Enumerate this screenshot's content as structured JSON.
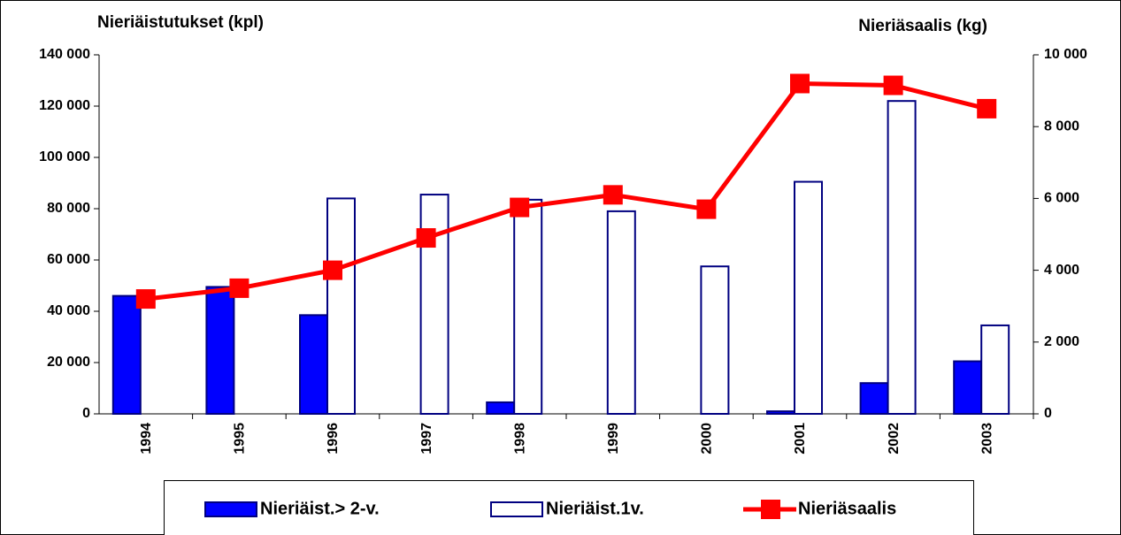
{
  "chart_data": {
    "type": "bar",
    "ylabel": "Nieriäistutukset (kpl)",
    "y2label": "Nieriäsaalis (kg)",
    "categories": [
      "1994",
      "1995",
      "1996",
      "1997",
      "1998",
      "1999",
      "2000",
      "2001",
      "2002",
      "2003"
    ],
    "series": [
      {
        "name": "Nieriäist.> 2-v.",
        "type": "bar",
        "color": "#0000ff",
        "values": [
          46000,
          49500,
          38500,
          0,
          4500,
          0,
          0,
          1000,
          12000,
          20500
        ]
      },
      {
        "name": "Nieriäist.1v.",
        "type": "bar",
        "color": "#ffffff",
        "values": [
          0,
          0,
          84000,
          85500,
          83500,
          79000,
          57500,
          90500,
          122000,
          34500
        ]
      },
      {
        "name": "Nieriäsaalis",
        "type": "line",
        "axis": "y2",
        "color": "#ff0000",
        "values": [
          3200,
          3500,
          4000,
          4900,
          5750,
          6100,
          5700,
          9200,
          9150,
          8500
        ]
      }
    ],
    "ylim": [
      0,
      140000
    ],
    "yticks": [
      0,
      {
        "value": 20000,
        "label": "20 000"
      },
      {
        "value": 40000,
        "label": "40 000"
      },
      {
        "value": 60000,
        "label": "60 000"
      },
      {
        "value": 80000,
        "label": "80 000"
      },
      {
        "value": 100000,
        "label": "100 000"
      },
      {
        "value": 120000,
        "label": "120 000"
      },
      {
        "value": 140000,
        "label": "140 000"
      }
    ],
    "y2lim": [
      0,
      10000
    ],
    "y2ticks": [
      0,
      {
        "value": 2000,
        "label": "2 000"
      },
      {
        "value": 4000,
        "label": "4 000"
      },
      {
        "value": 6000,
        "label": "6 000"
      },
      {
        "value": 8000,
        "label": "8 000"
      },
      {
        "value": 10000,
        "label": "10 000"
      }
    ],
    "grid": false,
    "legend": "bottom"
  }
}
